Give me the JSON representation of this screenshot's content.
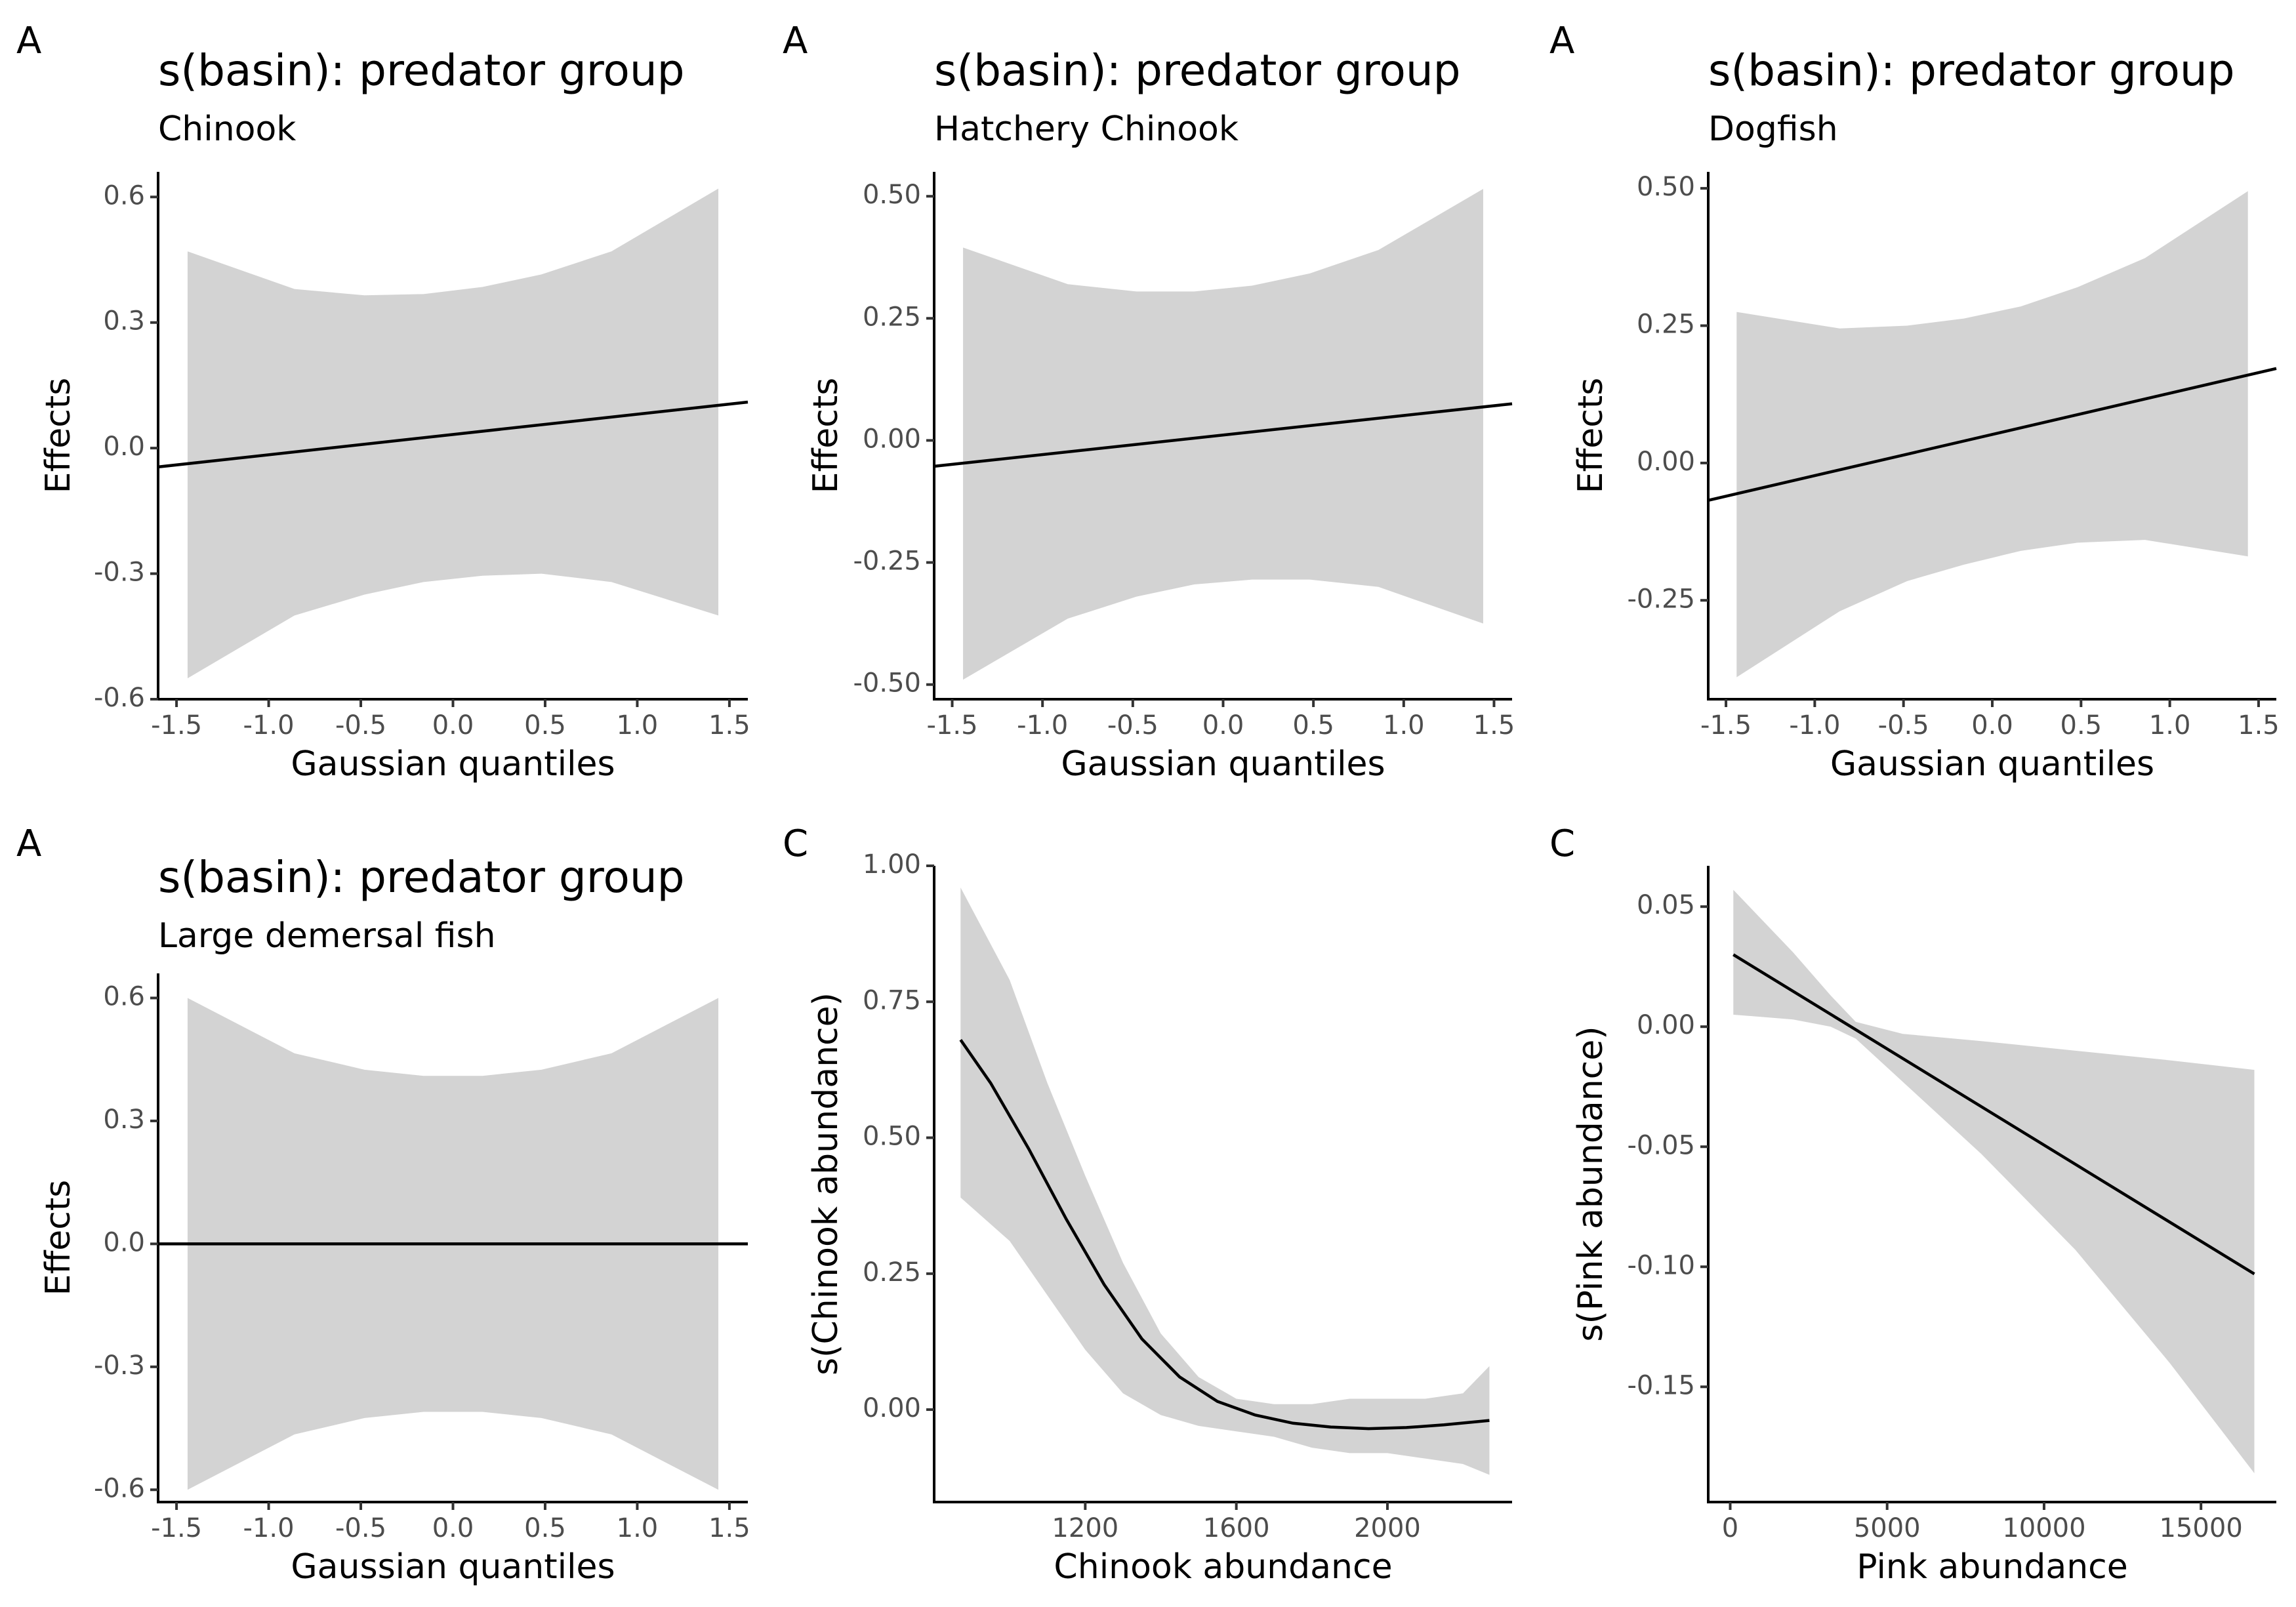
{
  "chart_data": [
    {
      "type": "line",
      "tag": "A",
      "title": "s(basin): predator group",
      "subtitle": "Chinook",
      "xlabel": "Gaussian quantiles",
      "ylabel": "Effects",
      "xlim": [
        -1.6,
        1.6
      ],
      "ylim": [
        -0.6,
        0.66
      ],
      "xticks": [
        -1.5,
        -1.0,
        -0.5,
        0.0,
        0.5,
        1.0,
        1.5
      ],
      "xticklabels": [
        "-1.5",
        "-1.0",
        "-0.5",
        "0.0",
        "0.5",
        "1.0",
        "1.5"
      ],
      "yticks": [
        -0.6,
        -0.3,
        0.0,
        0.3,
        0.6
      ],
      "yticklabels": [
        "-0.6",
        "-0.3",
        "0.0",
        "0.3",
        "0.6"
      ],
      "band": {
        "x": [
          -1.44,
          -0.86,
          -0.48,
          -0.16,
          0.16,
          0.48,
          0.86,
          1.44
        ],
        "lower": [
          -0.55,
          -0.4,
          -0.35,
          -0.32,
          -0.305,
          -0.3,
          -0.32,
          -0.4
        ],
        "upper": [
          0.47,
          0.38,
          0.365,
          0.368,
          0.385,
          0.415,
          0.47,
          0.62
        ]
      },
      "line": {
        "x": [
          -1.6,
          1.6
        ],
        "y": [
          -0.045,
          0.11
        ]
      }
    },
    {
      "type": "line",
      "tag": "A",
      "title": "s(basin): predator group",
      "subtitle": "Hatchery Chinook",
      "xlabel": "Gaussian quantiles",
      "ylabel": "Effects",
      "xlim": [
        -1.6,
        1.6
      ],
      "ylim": [
        -0.53,
        0.55
      ],
      "xticks": [
        -1.5,
        -1.0,
        -0.5,
        0.0,
        0.5,
        1.0,
        1.5
      ],
      "xticklabels": [
        "-1.5",
        "-1.0",
        "-0.5",
        "0.0",
        "0.5",
        "1.0",
        "1.5"
      ],
      "yticks": [
        -0.5,
        -0.25,
        0.0,
        0.25,
        0.5
      ],
      "yticklabels": [
        "-0.50",
        "-0.25",
        "0.00",
        "0.25",
        "0.50"
      ],
      "band": {
        "x": [
          -1.44,
          -0.86,
          -0.48,
          -0.16,
          0.16,
          0.48,
          0.86,
          1.44
        ],
        "lower": [
          -0.49,
          -0.365,
          -0.32,
          -0.295,
          -0.285,
          -0.285,
          -0.3,
          -0.375
        ],
        "upper": [
          0.395,
          0.32,
          0.305,
          0.305,
          0.317,
          0.342,
          0.39,
          0.515
        ]
      },
      "line": {
        "x": [
          -1.6,
          1.6
        ],
        "y": [
          -0.053,
          0.075
        ]
      }
    },
    {
      "type": "line",
      "tag": "A",
      "title": "s(basin): predator group",
      "subtitle": "Dogfish",
      "xlabel": "Gaussian quantiles",
      "ylabel": "Effects",
      "xlim": [
        -1.6,
        1.6
      ],
      "ylim": [
        -0.43,
        0.53
      ],
      "xticks": [
        -1.5,
        -1.0,
        -0.5,
        0.0,
        0.5,
        1.0,
        1.5
      ],
      "xticklabels": [
        "-1.5",
        "-1.0",
        "-0.5",
        "0.0",
        "0.5",
        "1.0",
        "1.5"
      ],
      "yticks": [
        -0.25,
        0.0,
        0.25,
        0.5
      ],
      "yticklabels": [
        "-0.25",
        "0.00",
        "0.25",
        "0.50"
      ],
      "band": {
        "x": [
          -1.44,
          -0.86,
          -0.48,
          -0.16,
          0.16,
          0.48,
          0.86,
          1.44
        ],
        "lower": [
          -0.39,
          -0.27,
          -0.215,
          -0.185,
          -0.16,
          -0.145,
          -0.14,
          -0.17
        ],
        "upper": [
          0.275,
          0.245,
          0.25,
          0.263,
          0.285,
          0.32,
          0.373,
          0.495
        ]
      },
      "line": {
        "x": [
          -1.6,
          1.6
        ],
        "y": [
          -0.068,
          0.172
        ]
      }
    },
    {
      "type": "line",
      "tag": "A",
      "title": "s(basin): predator group",
      "subtitle": "Large demersal fish",
      "xlabel": "Gaussian quantiles",
      "ylabel": "Effects",
      "xlim": [
        -1.6,
        1.6
      ],
      "ylim": [
        -0.63,
        0.66
      ],
      "xticks": [
        -1.5,
        -1.0,
        -0.5,
        0.0,
        0.5,
        1.0,
        1.5
      ],
      "xticklabels": [
        "-1.5",
        "-1.0",
        "-0.5",
        "0.0",
        "0.5",
        "1.0",
        "1.5"
      ],
      "yticks": [
        -0.6,
        -0.3,
        0.0,
        0.3,
        0.6
      ],
      "yticklabels": [
        "-0.6",
        "-0.3",
        "0.0",
        "0.3",
        "0.6"
      ],
      "band": {
        "x": [
          -1.44,
          -0.86,
          -0.48,
          -0.16,
          0.16,
          0.48,
          0.86,
          1.44
        ],
        "lower": [
          -0.6,
          -0.465,
          -0.425,
          -0.41,
          -0.41,
          -0.425,
          -0.465,
          -0.6
        ],
        "upper": [
          0.6,
          0.465,
          0.425,
          0.41,
          0.41,
          0.425,
          0.465,
          0.6
        ]
      },
      "line": {
        "x": [
          -1.6,
          1.6
        ],
        "y": [
          0.0,
          0.0
        ]
      }
    },
    {
      "type": "line",
      "tag": "C",
      "title": "",
      "subtitle": "",
      "xlabel": "Chinook abundance",
      "ylabel": "s(Chinook abundance)",
      "xlim": [
        800,
        2330
      ],
      "ylim": [
        -0.17,
        1.0
      ],
      "xticks": [
        1200,
        1600,
        2000
      ],
      "xticklabels": [
        "1200",
        "1600",
        "2000"
      ],
      "yticks": [
        0.0,
        0.25,
        0.5,
        0.75,
        1.0
      ],
      "yticklabels": [
        "0.00",
        "0.25",
        "0.50",
        "0.75",
        "1.00"
      ],
      "band": {
        "x": [
          870,
          1000,
          1100,
          1200,
          1300,
          1400,
          1500,
          1600,
          1700,
          1800,
          1900,
          2000,
          2100,
          2200,
          2270
        ],
        "lower": [
          0.39,
          0.31,
          0.21,
          0.11,
          0.03,
          -0.01,
          -0.03,
          -0.04,
          -0.05,
          -0.07,
          -0.08,
          -0.08,
          -0.09,
          -0.1,
          -0.12
        ],
        "upper": [
          0.96,
          0.79,
          0.6,
          0.43,
          0.27,
          0.14,
          0.06,
          0.02,
          0.01,
          0.01,
          0.02,
          0.02,
          0.02,
          0.03,
          0.08
        ]
      },
      "line": {
        "x": [
          870,
          950,
          1050,
          1150,
          1250,
          1350,
          1450,
          1550,
          1650,
          1750,
          1850,
          1950,
          2050,
          2150,
          2270
        ],
        "y": [
          0.68,
          0.6,
          0.48,
          0.35,
          0.23,
          0.13,
          0.06,
          0.015,
          -0.01,
          -0.025,
          -0.032,
          -0.035,
          -0.033,
          -0.028,
          -0.02
        ]
      }
    },
    {
      "type": "line",
      "tag": "C",
      "title": "",
      "subtitle": "",
      "xlabel": "Pink abundance",
      "ylabel": "s(Pink abundance)",
      "xlim": [
        -700,
        17400
      ],
      "ylim": [
        -0.198,
        0.067
      ],
      "xticks": [
        0,
        5000,
        10000,
        15000
      ],
      "xticklabels": [
        "0",
        "5000",
        "10000",
        "15000"
      ],
      "yticks": [
        -0.15,
        -0.1,
        -0.05,
        0.0,
        0.05
      ],
      "yticklabels": [
        "-0.15",
        "-0.10",
        "-0.05",
        "0.00",
        "0.05"
      ],
      "band": {
        "x": [
          100,
          2000,
          3200,
          4000,
          5500,
          8000,
          11000,
          14000,
          16700
        ],
        "lower": [
          0.005,
          0.003,
          0.0,
          -0.005,
          -0.023,
          -0.053,
          -0.093,
          -0.14,
          -0.186
        ],
        "upper": [
          0.057,
          0.031,
          0.013,
          0.002,
          -0.003,
          -0.006,
          -0.01,
          -0.014,
          -0.018
        ]
      },
      "line": {
        "x": [
          100,
          16700
        ],
        "y": [
          0.03,
          -0.103
        ]
      }
    }
  ]
}
